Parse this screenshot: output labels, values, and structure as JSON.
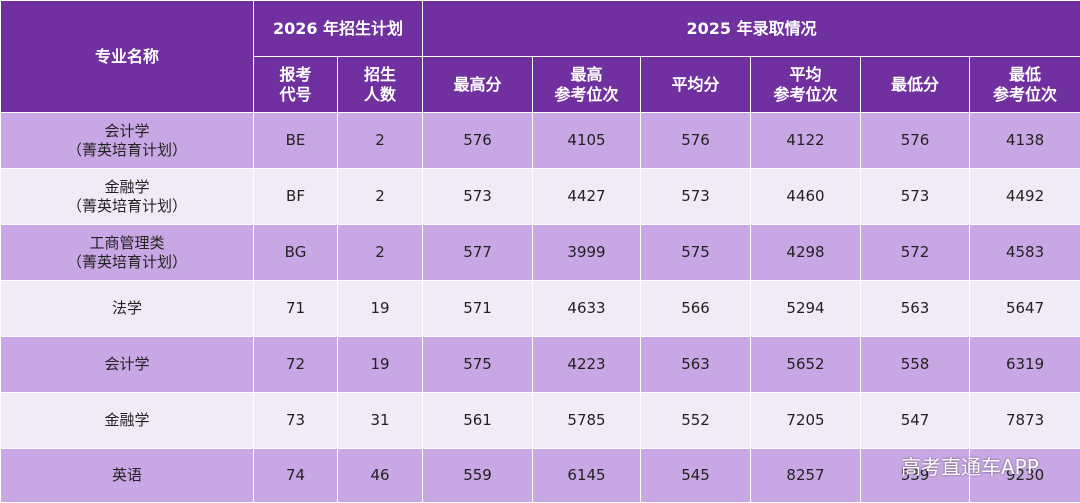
{
  "header": {
    "major_name": "专业名称",
    "plan_2026": "2026 年招生计划",
    "admit_2025": "2025 年录取情况",
    "code_line1": "报考",
    "code_line2": "代号",
    "count_line1": "招生",
    "count_line2": "人数",
    "max_score": "最高分",
    "max_rank_line1": "最高",
    "max_rank_line2": "参考位次",
    "avg_score": "平均分",
    "avg_rank_line1": "平均",
    "avg_rank_line2": "参考位次",
    "min_score": "最低分",
    "min_rank_line1": "最低",
    "min_rank_line2": "参考位次"
  },
  "rows": [
    {
      "name": "会计学",
      "note": "（菁英培育计划）",
      "code": "BE",
      "count": "2",
      "max_score": "576",
      "max_rank": "4105",
      "avg_score": "576",
      "avg_rank": "4122",
      "min_score": "576",
      "min_rank": "4138"
    },
    {
      "name": "金融学",
      "note": "（菁英培育计划）",
      "code": "BF",
      "count": "2",
      "max_score": "573",
      "max_rank": "4427",
      "avg_score": "573",
      "avg_rank": "4460",
      "min_score": "573",
      "min_rank": "4492"
    },
    {
      "name": "工商管理类",
      "note": "（菁英培育计划）",
      "code": "BG",
      "count": "2",
      "max_score": "577",
      "max_rank": "3999",
      "avg_score": "575",
      "avg_rank": "4298",
      "min_score": "572",
      "min_rank": "4583"
    },
    {
      "name": "法学",
      "note": "",
      "code": "71",
      "count": "19",
      "max_score": "571",
      "max_rank": "4633",
      "avg_score": "566",
      "avg_rank": "5294",
      "min_score": "563",
      "min_rank": "5647"
    },
    {
      "name": "会计学",
      "note": "",
      "code": "72",
      "count": "19",
      "max_score": "575",
      "max_rank": "4223",
      "avg_score": "563",
      "avg_rank": "5652",
      "min_score": "558",
      "min_rank": "6319"
    },
    {
      "name": "金融学",
      "note": "",
      "code": "73",
      "count": "31",
      "max_score": "561",
      "max_rank": "5785",
      "avg_score": "552",
      "avg_rank": "7205",
      "min_score": "547",
      "min_rank": "7873"
    },
    {
      "name": "英语",
      "note": "",
      "code": "74",
      "count": "46",
      "max_score": "559",
      "max_rank": "6145",
      "avg_score": "545",
      "avg_rank": "8257",
      "min_score": "539",
      "min_rank": "9230"
    }
  ],
  "watermark": "高考直通车APP",
  "colors": {
    "header_bg": "#7030a0",
    "row_dark": "#c8a8e4",
    "row_light": "#f1ebf8"
  }
}
